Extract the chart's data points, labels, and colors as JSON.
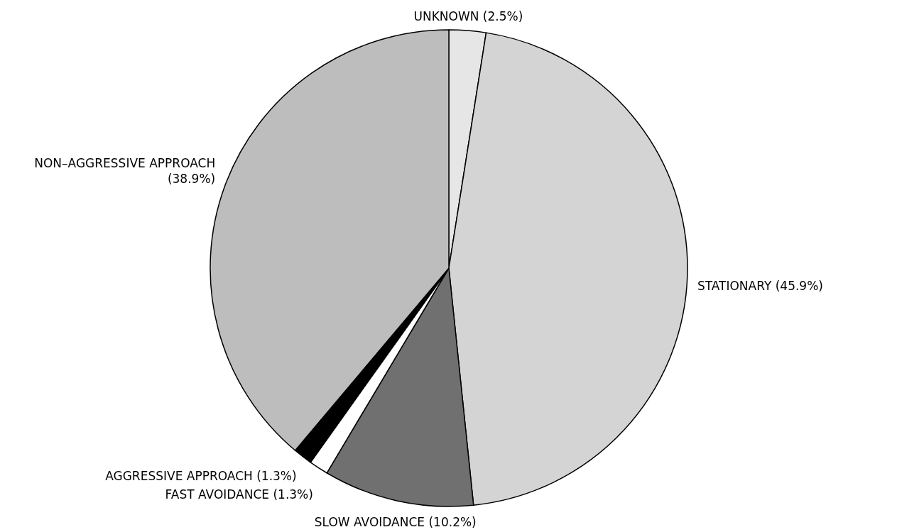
{
  "chart_data": {
    "type": "pie",
    "categories": [
      "UNKNOWN",
      "STATIONARY",
      "SLOW AVOIDANCE",
      "FAST AVOIDANCE",
      "AGGRESSIVE APPROACH",
      "NON–AGGRESSIVE APPROACH"
    ],
    "values": [
      2.5,
      45.9,
      10.2,
      1.3,
      1.3,
      38.9
    ],
    "value_labels": [
      "(2.5%)",
      "(45.9%)",
      "(10.2%)",
      "(1.3%)",
      "(1.3%)",
      "(38.9%)"
    ],
    "colors": [
      "#e6e6e6",
      "#d4d4d4",
      "#707070",
      "#ffffff",
      "#000000",
      "#bdbdbd"
    ]
  }
}
